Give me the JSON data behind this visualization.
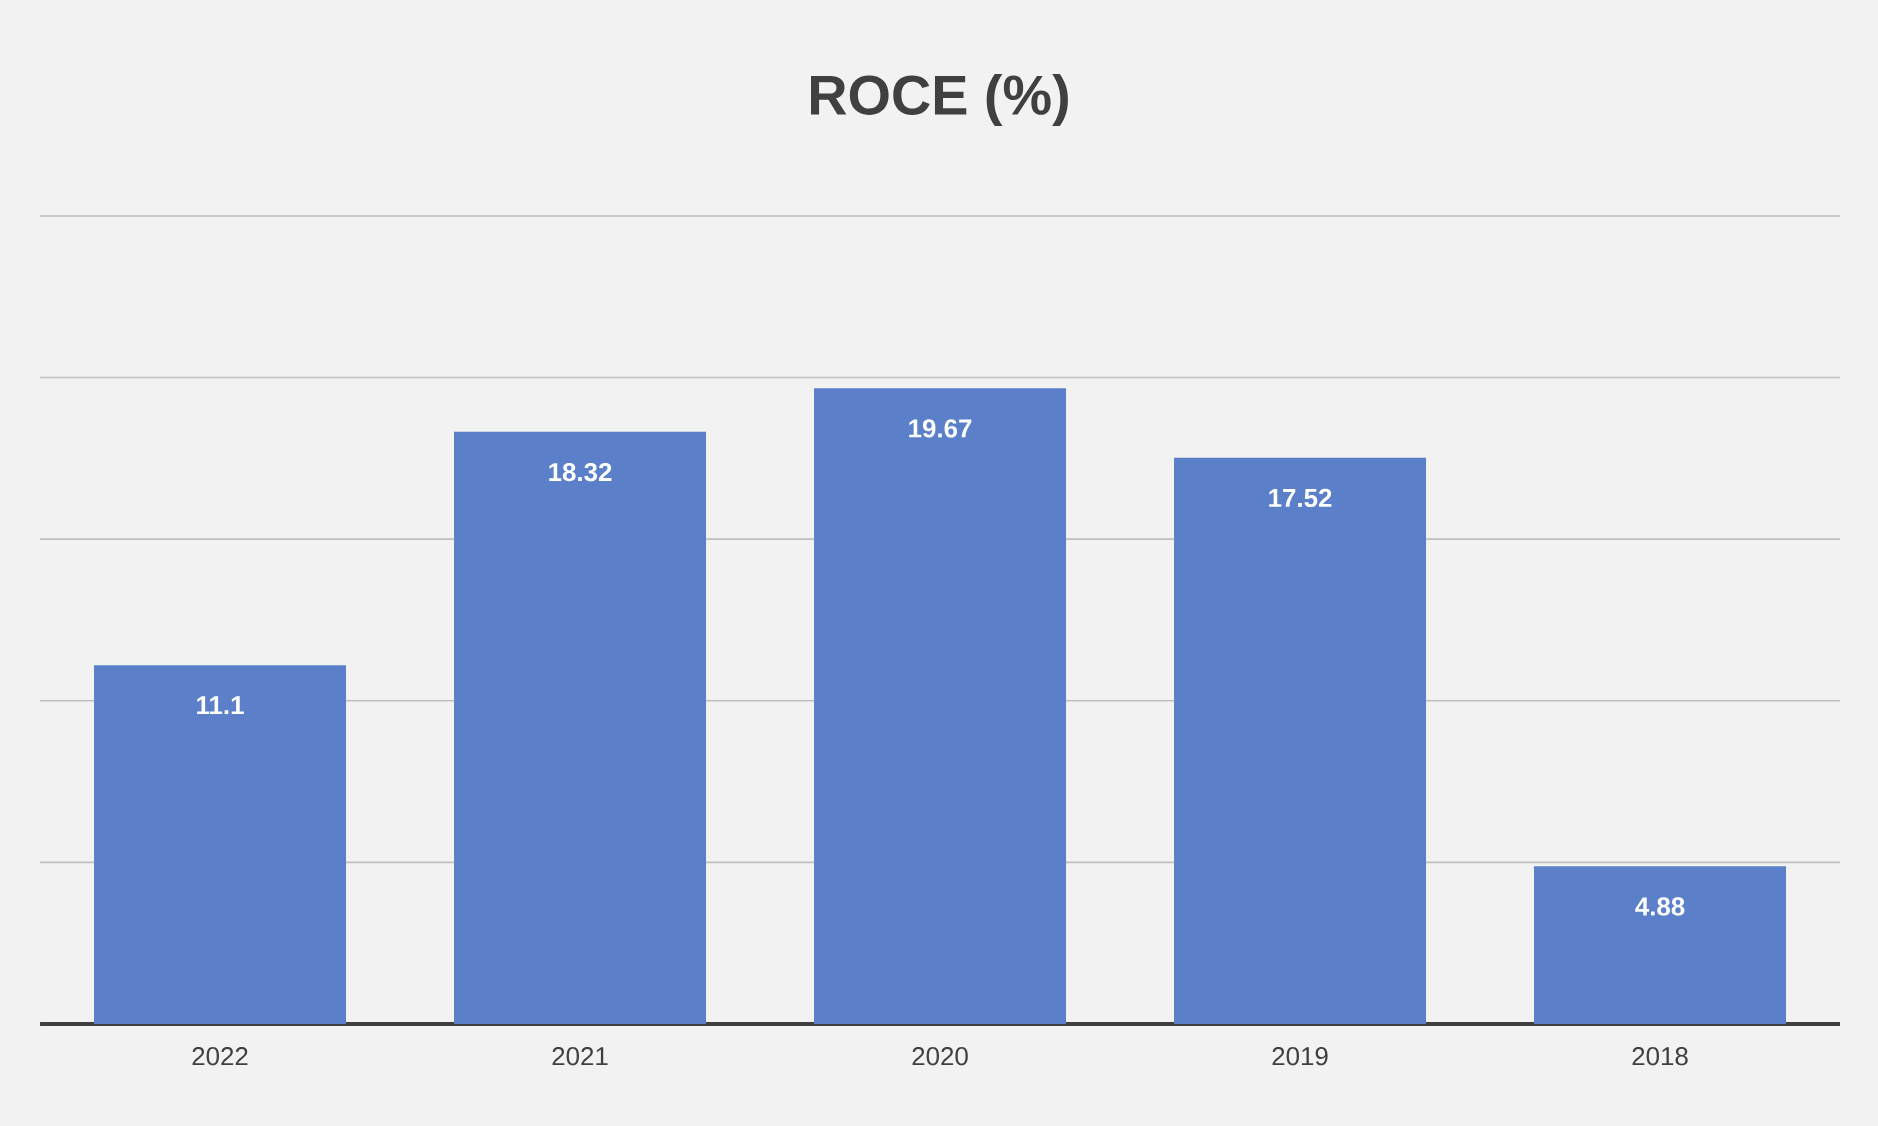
{
  "chart_data": {
    "type": "bar",
    "title": "ROCE (%)",
    "categories": [
      "2022",
      "2021",
      "2020",
      "2019",
      "2018"
    ],
    "values": [
      11.1,
      18.32,
      19.67,
      17.52,
      4.88
    ],
    "color": "#5b80c9",
    "ylim": [
      0,
      25
    ],
    "yticks": [
      {
        "value": 0,
        "label": null
      },
      {
        "value": 5,
        "label": null
      },
      {
        "value": 10,
        "label": null
      },
      {
        "value": 15,
        "label": null
      },
      {
        "value": 20,
        "label": null
      },
      {
        "value": 25,
        "label": null
      }
    ],
    "grid": "y",
    "tick_labels": "x",
    "data_labels": true
  }
}
